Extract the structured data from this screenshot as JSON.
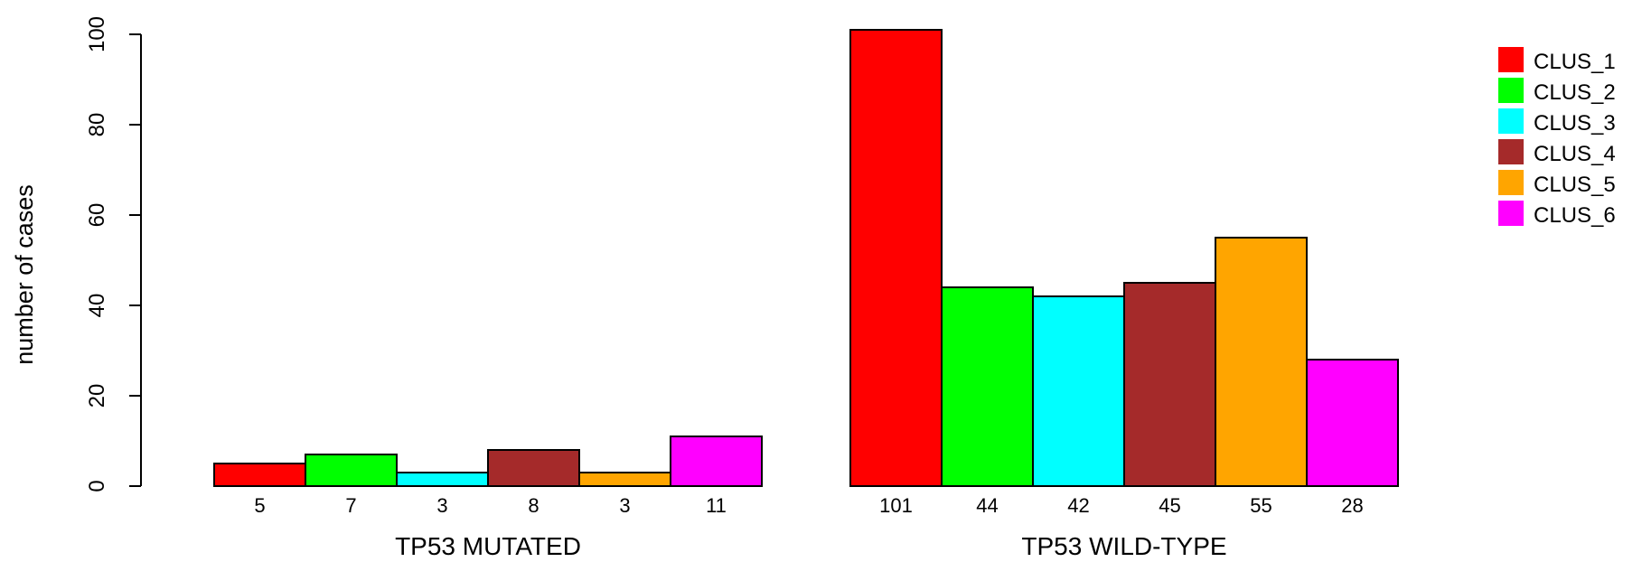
{
  "chart_data": {
    "type": "bar",
    "ylabel": "number of cases",
    "ylim": [
      0,
      100
    ],
    "yticks": [
      0,
      20,
      40,
      60,
      80,
      100
    ],
    "grid": false,
    "legend_position": "top-right",
    "groups": [
      {
        "name": "TP53 MUTATED",
        "values": [
          5,
          7,
          3,
          8,
          3,
          11
        ],
        "labels": [
          "5",
          "7",
          "3",
          "8",
          "3",
          "11"
        ]
      },
      {
        "name": "TP53 WILD-TYPE",
        "values": [
          101,
          44,
          42,
          45,
          55,
          28
        ],
        "labels": [
          "101",
          "44",
          "42",
          "45",
          "55",
          "28"
        ]
      }
    ],
    "series": [
      {
        "name": "CLUS_1",
        "color": "#ff0000"
      },
      {
        "name": "CLUS_2",
        "color": "#00ff00"
      },
      {
        "name": "CLUS_3",
        "color": "#00ffff"
      },
      {
        "name": "CLUS_4",
        "color": "#a52a2a"
      },
      {
        "name": "CLUS_5",
        "color": "#ffa500"
      },
      {
        "name": "CLUS_6",
        "color": "#ff00ff"
      }
    ]
  }
}
